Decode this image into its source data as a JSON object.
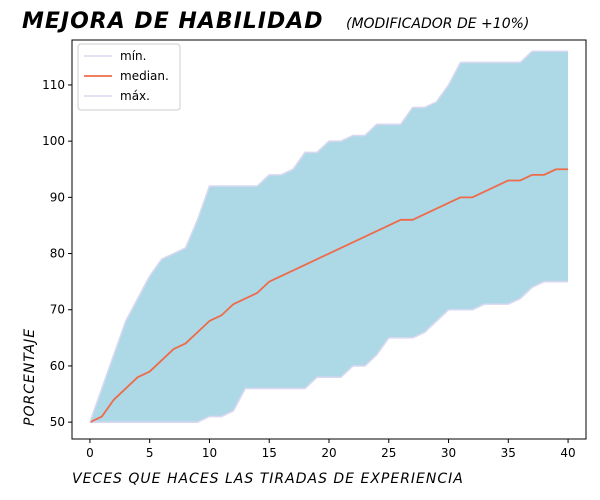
{
  "chart_data": {
    "type": "area",
    "title": "MEJORA DE HABILIDAD",
    "subtitle": "(MODIFICADOR DE +10%)",
    "xlabel": "VECES QUE HACES LAS TIRADAS DE EXPERIENCIA",
    "ylabel": "PORCENTAJE",
    "xlim": [
      -1.5,
      41.5
    ],
    "ylim": [
      47,
      118
    ],
    "xticks": [
      0,
      5,
      10,
      15,
      20,
      25,
      30,
      35,
      40
    ],
    "yticks": [
      50,
      60,
      70,
      80,
      90,
      100,
      110
    ],
    "legend_position": "top-left",
    "grid": false,
    "x": [
      0,
      1,
      2,
      3,
      4,
      5,
      6,
      7,
      8,
      9,
      10,
      11,
      12,
      13,
      14,
      15,
      16,
      17,
      18,
      19,
      20,
      21,
      22,
      23,
      24,
      25,
      26,
      27,
      28,
      29,
      30,
      31,
      32,
      33,
      34,
      35,
      36,
      37,
      38,
      39,
      40
    ],
    "series": [
      {
        "name": "mín.",
        "color": "#d8d8f0",
        "values": [
          50,
          50,
          50,
          50,
          50,
          50,
          50,
          50,
          50,
          50,
          51,
          51,
          52,
          56,
          56,
          56,
          56,
          56,
          56,
          58,
          58,
          58,
          60,
          60,
          62,
          65,
          65,
          65,
          66,
          68,
          70,
          70,
          70,
          71,
          71,
          71,
          72,
          74,
          75,
          75,
          75
        ]
      },
      {
        "name": "median.",
        "color": "#ee6b4a",
        "values": [
          50,
          51,
          54,
          56,
          58,
          59,
          61,
          63,
          64,
          66,
          68,
          69,
          71,
          72,
          73,
          75,
          76,
          77,
          78,
          79,
          80,
          81,
          82,
          83,
          84,
          85,
          86,
          86,
          87,
          88,
          89,
          90,
          90,
          91,
          92,
          93,
          93,
          94,
          94,
          95,
          95
        ]
      },
      {
        "name": "máx.",
        "color": "#d8d8f0",
        "values": [
          50,
          56,
          62,
          68,
          72,
          76,
          79,
          80,
          81,
          86,
          92,
          92,
          92,
          92,
          92,
          94,
          94,
          95,
          98,
          98,
          100,
          100,
          101,
          101,
          103,
          103,
          103,
          106,
          106,
          107,
          110,
          114,
          114,
          114,
          114,
          114,
          114,
          116,
          116,
          116,
          116
        ]
      }
    ],
    "fill_color": "#add8e6"
  }
}
